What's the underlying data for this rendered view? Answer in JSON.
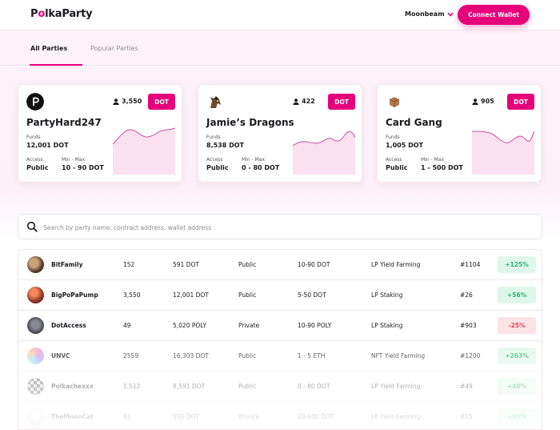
{
  "header": {
    "logo_pre": "P",
    "logo_dot": "o",
    "logo_post": "lkaParty",
    "network": "Moonbeam",
    "connect_label": "Connect Wallet"
  },
  "tabs": [
    {
      "label": "All Parties",
      "active": true
    },
    {
      "label": "Popular Parties",
      "active": false
    }
  ],
  "cards": [
    {
      "name": "PartyHard247",
      "members": "3,550",
      "token": "DOT",
      "funds_label": "Funds",
      "funds": "12,001 DOT",
      "access_label": "Access",
      "access": "Public",
      "minmax_label": "Min - Max",
      "minmax": "10 - 90 DOT",
      "avatar_icon": "polkadot-logo-icon"
    },
    {
      "name": "Jamie’s Dragons",
      "members": "422",
      "token": "DOT",
      "funds_label": "Funds",
      "funds": "8,538 DOT",
      "access_label": "Access",
      "access": "Public",
      "minmax_label": "Min - Max",
      "minmax": "0 - 80 DOT",
      "avatar_icon": "horse-avatar-icon"
    },
    {
      "name": "Card Gang",
      "members": "905",
      "token": "DOT",
      "funds_label": "Funds",
      "funds": "1,005 DOT",
      "access_label": "Access",
      "access": "Public",
      "minmax_label": "Min - Max",
      "minmax": "1 - 500 DOT",
      "avatar_icon": "box-avatar-icon"
    }
  ],
  "search": {
    "placeholder": "Search by party name, contract address, wallet address"
  },
  "rows": [
    {
      "name": "BitFamily",
      "members": "152",
      "funds": "591 DOT",
      "access": "Public",
      "range": "10-90 DOT",
      "strategy": "LP Yield Farming",
      "rank": "#1104",
      "change": "+125%",
      "dir": "up"
    },
    {
      "name": "BigPoPaPump",
      "members": "3,550",
      "funds": "12,001 DOT",
      "access": "Public",
      "range": "5-50 DOT",
      "strategy": "LP Staking",
      "rank": "#26",
      "change": "+56%",
      "dir": "up"
    },
    {
      "name": "DotAccess",
      "members": "49",
      "funds": "5,020 POLY",
      "access": "Private",
      "range": "10-90 POLY",
      "strategy": "LP Staking",
      "rank": "#903",
      "change": "-25%",
      "dir": "down"
    },
    {
      "name": "UNVC",
      "members": "2559",
      "funds": "16,303 DOT",
      "access": "Public",
      "range": "1 - 5 ETH",
      "strategy": "NFT Yield Farming",
      "rank": "#1200",
      "change": "+263%",
      "dir": "up"
    },
    {
      "name": "Polkachexxx",
      "members": "1,512",
      "funds": "8,591 DOT",
      "access": "Public",
      "range": "0 - 80 DOT",
      "strategy": "LP Yield Farming",
      "rank": "#49",
      "change": "+40%",
      "dir": "up"
    },
    {
      "name": "TheMoonCat",
      "members": "91",
      "funds": "550 DOT",
      "access": "Private",
      "range": "10-600 DOT",
      "strategy": "LP Yield Farming",
      "rank": "#15",
      "change": "+90%",
      "dir": "up"
    }
  ],
  "colors": {
    "accent": "#e6007a",
    "up_bg": "#dff7ea",
    "up_fg": "#2bb673",
    "down_bg": "#fde3e6",
    "down_fg": "#e6485d"
  }
}
